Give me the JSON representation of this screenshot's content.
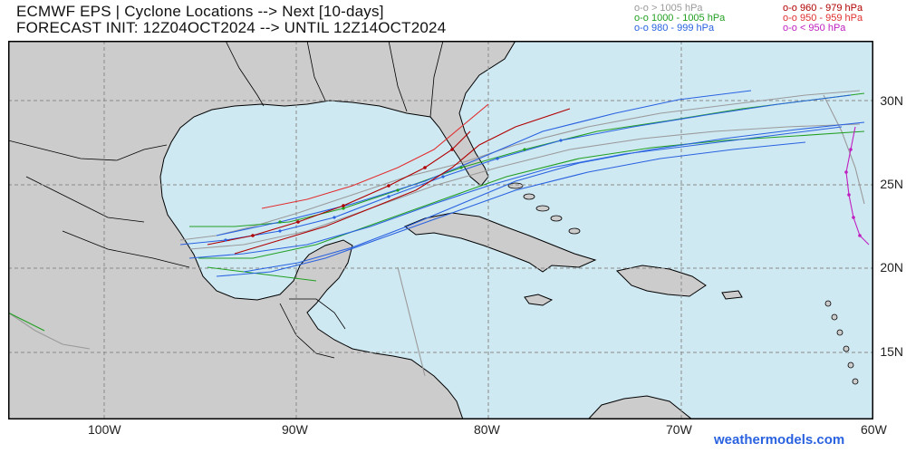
{
  "header": {
    "title": "ECMWF EPS | Cyclone Locations --> Next [10-days]",
    "subtitle": "FORECAST INIT: 12Z04OCT2024 --> UNTIL 12Z14OCT2024"
  },
  "legend": [
    {
      "label": "o-o > 1005 hPa",
      "color": "#9a9a9a"
    },
    {
      "label": "o-o 1000 - 1005 hPa",
      "color": "#22a022"
    },
    {
      "label": "o-o 980 - 999 hPa",
      "color": "#2a62e0"
    },
    {
      "label": "o-o 960 - 979 hPa",
      "color": "#b00000"
    },
    {
      "label": "o-o 950 - 959 hPa",
      "color": "#e03030"
    },
    {
      "label": "o-o < 950 hPa",
      "color": "#c020c0"
    }
  ],
  "axes": {
    "lat_labels": [
      "30N",
      "25N",
      "20N",
      "15N"
    ],
    "lon_labels": [
      "100W",
      "90W",
      "80W",
      "70W",
      "60W"
    ]
  },
  "colors": {
    "ocean": "#cfe9f3",
    "land": "#cccccc",
    "grid": "#8a8a8a"
  },
  "brand": "weathermodels.com"
}
